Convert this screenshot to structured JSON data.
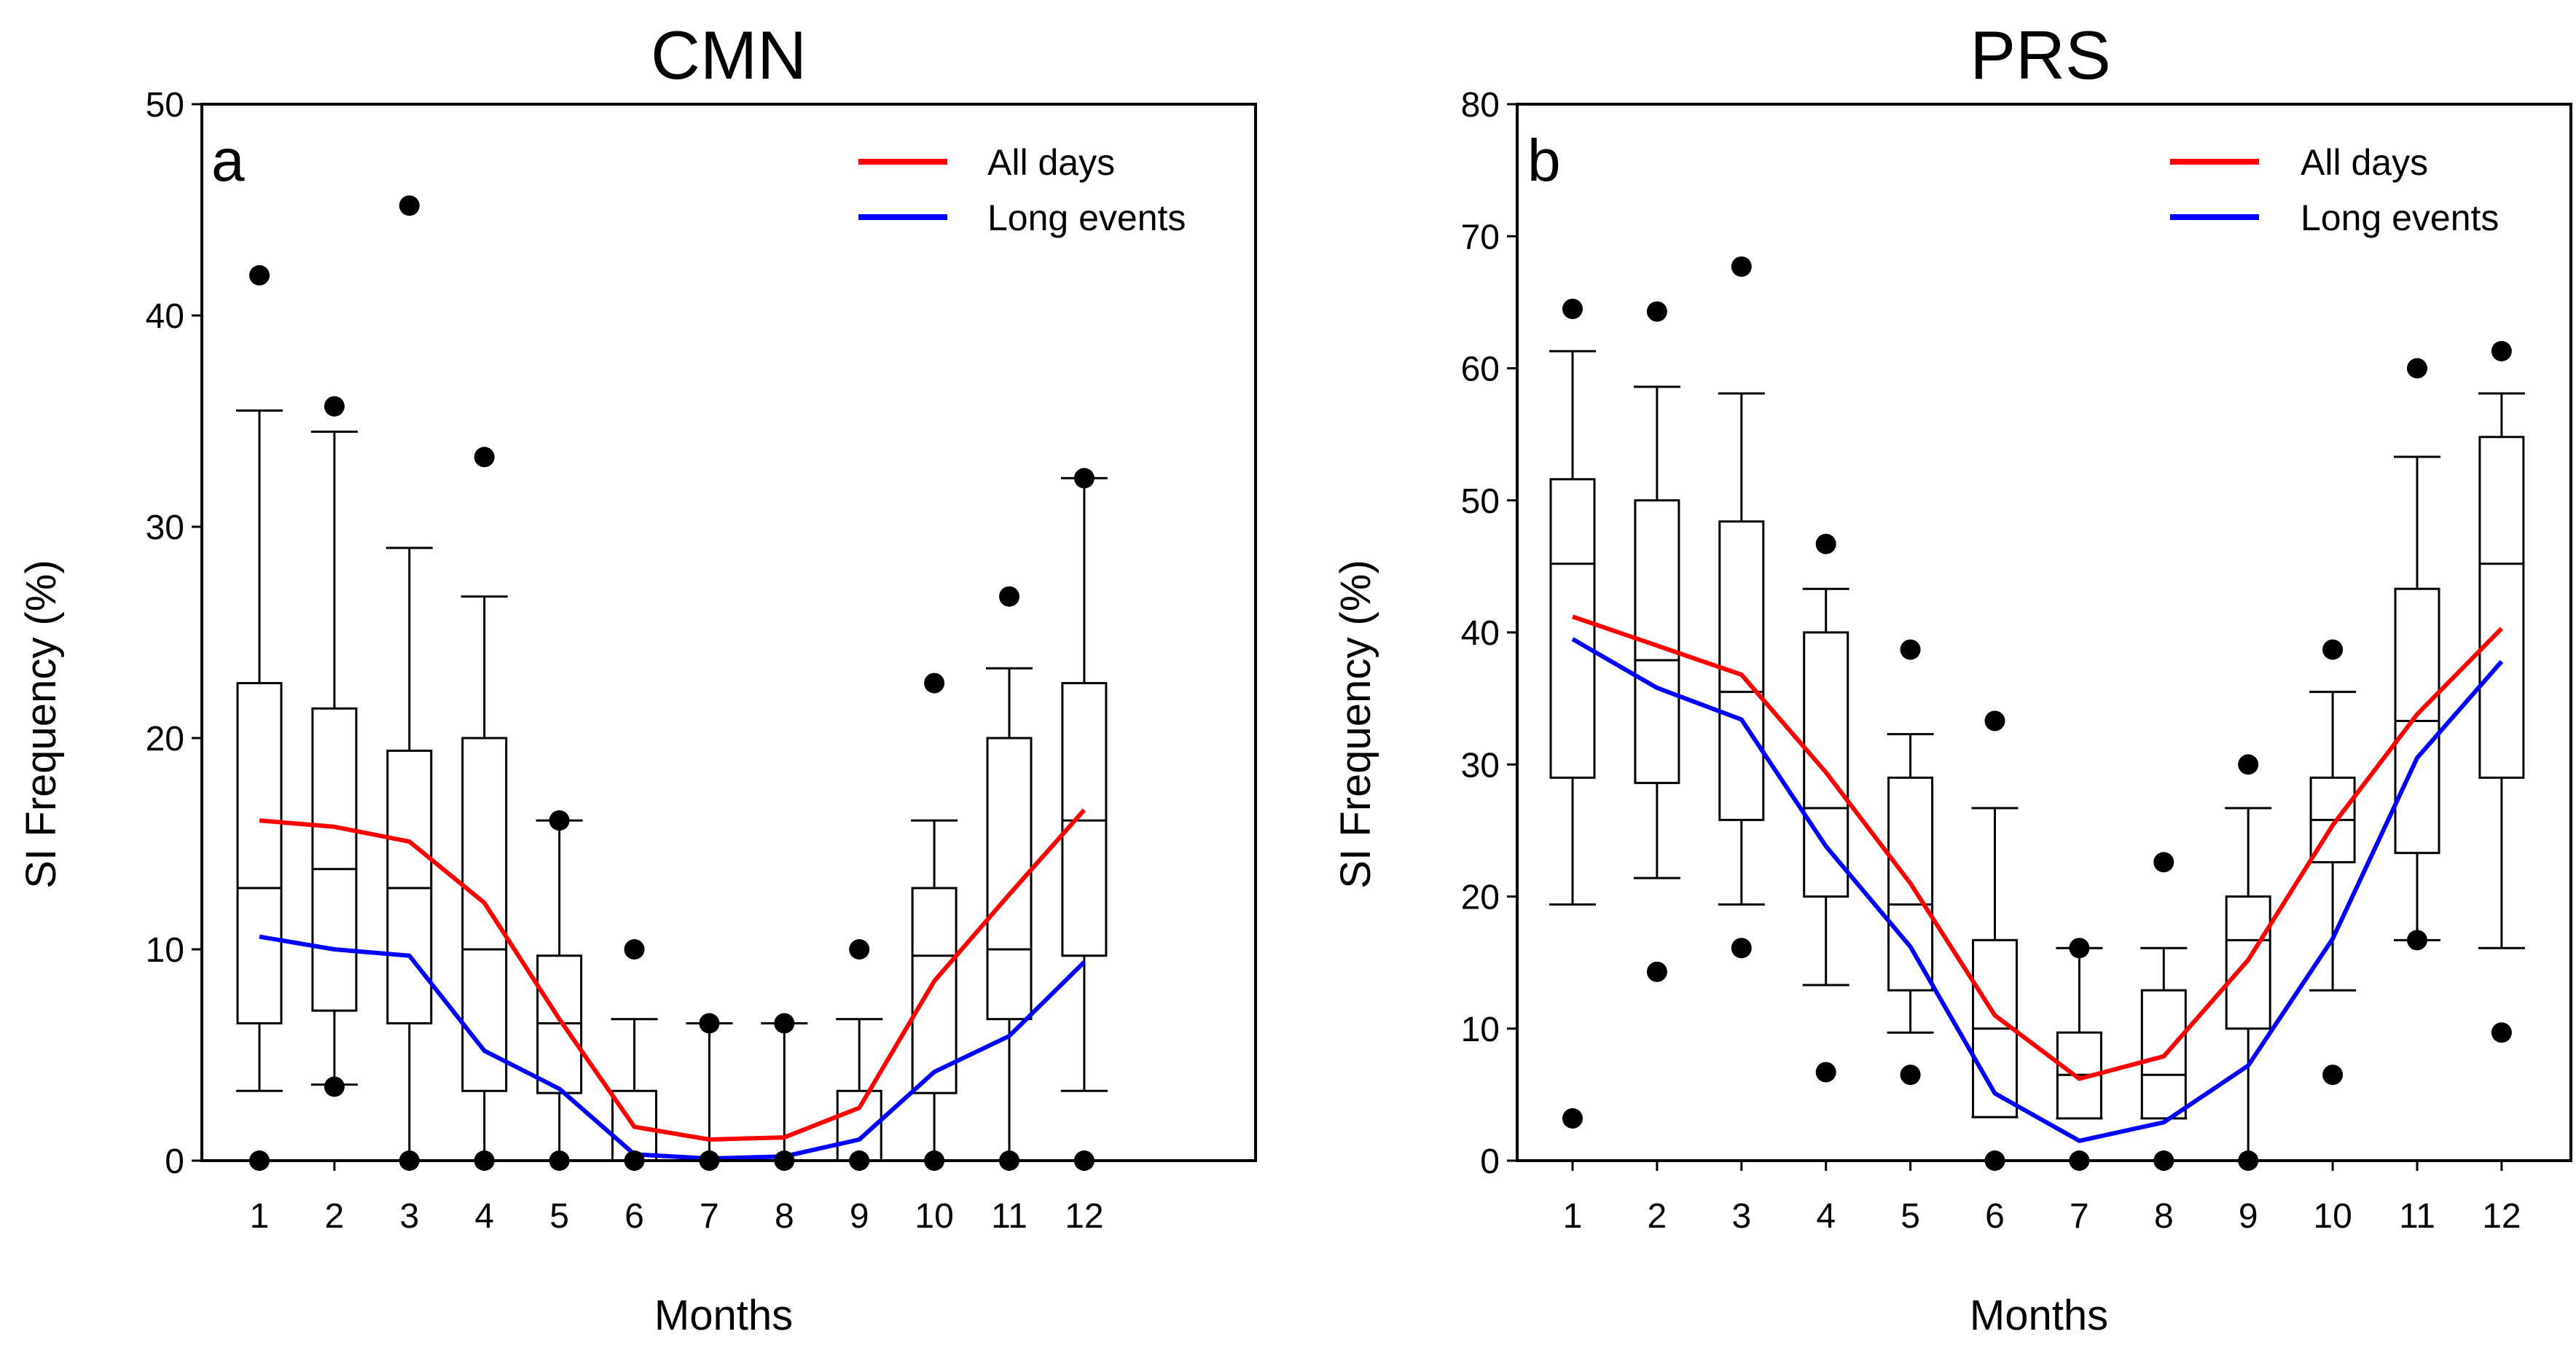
{
  "chart_data": [
    {
      "type": "box",
      "panel_label": "a",
      "title": "CMN",
      "xlabel": "Months",
      "ylabel": "SI Frequency (%)",
      "categories": [
        "1",
        "2",
        "3",
        "4",
        "5",
        "6",
        "7",
        "8",
        "9",
        "10",
        "11",
        "12"
      ],
      "ylim": [
        0,
        50
      ],
      "yticks": [
        "0",
        "10",
        "20",
        "30",
        "40",
        "50"
      ],
      "legend_position": "top-right",
      "boxes": [
        {
          "whisker_low": 3.3,
          "q1": 6.5,
          "median": 12.9,
          "q3": 22.6,
          "whisker_high": 35.5,
          "outliers": [
            0,
            41.9
          ]
        },
        {
          "whisker_low": 3.6,
          "q1": 7.1,
          "median": 13.8,
          "q3": 21.4,
          "whisker_high": 34.5,
          "outliers": [
            3.5,
            35.7
          ]
        },
        {
          "whisker_low": 0,
          "q1": 6.5,
          "median": 12.9,
          "q3": 19.4,
          "whisker_high": 29.0,
          "outliers": [
            0,
            45.2
          ]
        },
        {
          "whisker_low": 0,
          "q1": 3.3,
          "median": 10.0,
          "q3": 20.0,
          "whisker_high": 26.7,
          "outliers": [
            0,
            33.3
          ]
        },
        {
          "whisker_low": 0,
          "q1": 3.2,
          "median": 6.5,
          "q3": 9.7,
          "whisker_high": 16.1,
          "outliers": [
            0,
            16.1
          ]
        },
        {
          "whisker_low": 0,
          "q1": 0,
          "median": 0,
          "q3": 3.3,
          "whisker_high": 6.7,
          "outliers": [
            0,
            10.0
          ]
        },
        {
          "whisker_low": 0,
          "q1": 0,
          "median": 0,
          "q3": 0,
          "whisker_high": 6.5,
          "outliers": [
            0,
            6.5
          ]
        },
        {
          "whisker_low": 0,
          "q1": 0,
          "median": 0,
          "q3": 0,
          "whisker_high": 6.5,
          "outliers": [
            0,
            6.5
          ]
        },
        {
          "whisker_low": 0,
          "q1": 0,
          "median": 0,
          "q3": 3.3,
          "whisker_high": 6.7,
          "outliers": [
            0,
            10.0
          ]
        },
        {
          "whisker_low": 0,
          "q1": 3.2,
          "median": 9.7,
          "q3": 12.9,
          "whisker_high": 16.1,
          "outliers": [
            0,
            22.6
          ]
        },
        {
          "whisker_low": 0,
          "q1": 6.7,
          "median": 10.0,
          "q3": 20.0,
          "whisker_high": 23.3,
          "outliers": [
            0,
            26.7
          ]
        },
        {
          "whisker_low": 3.3,
          "q1": 9.7,
          "median": 16.1,
          "q3": 22.6,
          "whisker_high": 32.3,
          "outliers": [
            0,
            32.3
          ]
        }
      ],
      "series": [
        {
          "name": "All days",
          "color": "#ff0000",
          "values": [
            16.1,
            15.8,
            15.1,
            12.2,
            6.7,
            1.6,
            1.0,
            1.1,
            2.5,
            8.5,
            12.6,
            16.6
          ]
        },
        {
          "name": "Long events",
          "color": "#0000ff",
          "values": [
            10.6,
            10.0,
            9.7,
            5.2,
            3.4,
            0.3,
            0.1,
            0.2,
            1.0,
            4.2,
            5.9,
            9.4
          ]
        }
      ]
    },
    {
      "type": "box",
      "panel_label": "b",
      "title": "PRS",
      "xlabel": "Months",
      "ylabel": "SI Frequency (%)",
      "categories": [
        "1",
        "2",
        "3",
        "4",
        "5",
        "6",
        "7",
        "8",
        "9",
        "10",
        "11",
        "12"
      ],
      "ylim": [
        0,
        80
      ],
      "yticks": [
        "0",
        "10",
        "20",
        "30",
        "40",
        "50",
        "60",
        "70",
        "80"
      ],
      "legend_position": "top-right",
      "boxes": [
        {
          "whisker_low": 19.4,
          "q1": 29.0,
          "median": 45.2,
          "q3": 51.6,
          "whisker_high": 61.3,
          "outliers": [
            3.2,
            64.5
          ]
        },
        {
          "whisker_low": 21.4,
          "q1": 28.6,
          "median": 37.9,
          "q3": 50.0,
          "whisker_high": 58.6,
          "outliers": [
            14.3,
            64.3
          ]
        },
        {
          "whisker_low": 19.4,
          "q1": 25.8,
          "median": 35.5,
          "q3": 48.4,
          "whisker_high": 58.1,
          "outliers": [
            16.1,
            67.7
          ]
        },
        {
          "whisker_low": 13.3,
          "q1": 20.0,
          "median": 26.7,
          "q3": 40.0,
          "whisker_high": 43.3,
          "outliers": [
            6.7,
            46.7
          ]
        },
        {
          "whisker_low": 9.7,
          "q1": 12.9,
          "median": 19.4,
          "q3": 29.0,
          "whisker_high": 32.3,
          "outliers": [
            6.5,
            38.7
          ]
        },
        {
          "whisker_low": 3.3,
          "q1": 3.3,
          "median": 10.0,
          "q3": 16.7,
          "whisker_high": 26.7,
          "outliers": [
            0,
            33.3
          ]
        },
        {
          "whisker_low": 3.2,
          "q1": 3.2,
          "median": 6.5,
          "q3": 9.7,
          "whisker_high": 16.1,
          "outliers": [
            0,
            16.1
          ]
        },
        {
          "whisker_low": 3.2,
          "q1": 3.2,
          "median": 6.5,
          "q3": 12.9,
          "whisker_high": 16.1,
          "outliers": [
            0,
            22.6
          ]
        },
        {
          "whisker_low": 0,
          "q1": 10.0,
          "median": 16.7,
          "q3": 20.0,
          "whisker_high": 26.7,
          "outliers": [
            0,
            30.0
          ]
        },
        {
          "whisker_low": 12.9,
          "q1": 22.6,
          "median": 25.8,
          "q3": 29.0,
          "whisker_high": 35.5,
          "outliers": [
            6.5,
            38.7
          ]
        },
        {
          "whisker_low": 16.7,
          "q1": 23.3,
          "median": 33.3,
          "q3": 43.3,
          "whisker_high": 53.3,
          "outliers": [
            16.7,
            60.0
          ]
        },
        {
          "whisker_low": 16.1,
          "q1": 29.0,
          "median": 45.2,
          "q3": 54.8,
          "whisker_high": 58.1,
          "outliers": [
            9.7,
            61.3
          ]
        }
      ],
      "series": [
        {
          "name": "All days",
          "color": "#ff0000",
          "values": [
            41.2,
            39.0,
            36.8,
            29.4,
            21.0,
            11.0,
            6.2,
            7.9,
            15.2,
            25.4,
            33.8,
            40.3
          ]
        },
        {
          "name": "Long events",
          "color": "#0000ff",
          "values": [
            39.5,
            35.8,
            33.4,
            23.8,
            16.2,
            5.1,
            1.5,
            2.9,
            7.2,
            16.8,
            30.5,
            37.8
          ]
        }
      ]
    }
  ]
}
